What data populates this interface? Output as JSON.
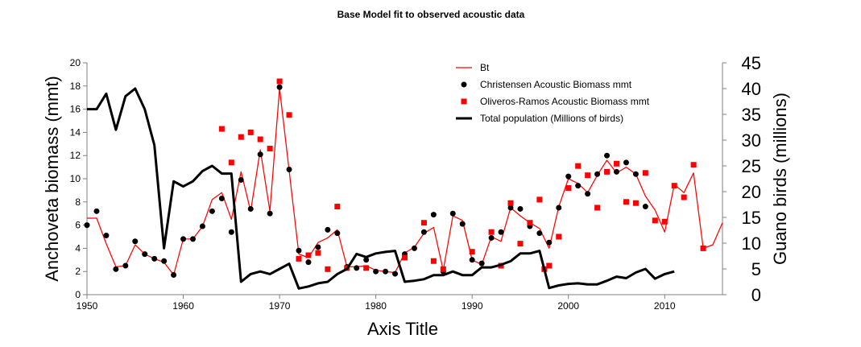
{
  "chart_data": {
    "type": "line",
    "title": "Base Model fit to observed acoustic data",
    "xlabel": "Axis Title",
    "ylabel_left": "Anchoveta  biomass (mmt)",
    "ylabel_right": "Guano birds (millions)",
    "xlim": [
      1950,
      2016
    ],
    "ylim_left": [
      0,
      20
    ],
    "ylim_right": [
      0,
      45
    ],
    "x_ticks": [
      "1950",
      "1960",
      "1970",
      "1980",
      "1990",
      "2000",
      "2010"
    ],
    "y_left_ticks": [
      "0",
      "2",
      "4",
      "6",
      "8",
      "10",
      "12",
      "14",
      "16",
      "18",
      "20"
    ],
    "y_right_ticks": [
      "0",
      "5",
      "10",
      "15",
      "20",
      "25",
      "30",
      "35",
      "40",
      "45"
    ],
    "legend_position": "top-right",
    "grid": false,
    "series": [
      {
        "name": "Bt",
        "kind": "line",
        "axis": "left",
        "color": "#ff0000",
        "points": [
          [
            1950,
            6.6
          ],
          [
            1951,
            6.6
          ],
          [
            1952,
            4.4
          ],
          [
            1953,
            2.4
          ],
          [
            1954,
            2.5
          ],
          [
            1955,
            4.3
          ],
          [
            1956,
            3.5
          ],
          [
            1957,
            3.1
          ],
          [
            1958,
            2.8
          ],
          [
            1959,
            1.7
          ],
          [
            1960,
            4.8
          ],
          [
            1961,
            4.8
          ],
          [
            1962,
            5.9
          ],
          [
            1963,
            8.2
          ],
          [
            1964,
            8.8
          ],
          [
            1965,
            6.5
          ],
          [
            1966,
            10.6
          ],
          [
            1967,
            7.2
          ],
          [
            1968,
            12.5
          ],
          [
            1969,
            7.2
          ],
          [
            1970,
            17.8
          ],
          [
            1971,
            10.7
          ],
          [
            1972,
            3.5
          ],
          [
            1973,
            3.2
          ],
          [
            1974,
            4.5
          ],
          [
            1975,
            4.9
          ],
          [
            1976,
            5.6
          ],
          [
            1977,
            2.4
          ],
          [
            1978,
            2.4
          ],
          [
            1979,
            2.5
          ],
          [
            1980,
            2.1
          ],
          [
            1981,
            2.0
          ],
          [
            1982,
            1.9
          ],
          [
            1983,
            3.6
          ],
          [
            1984,
            4.1
          ],
          [
            1985,
            5.3
          ],
          [
            1986,
            5.8
          ],
          [
            1987,
            2.1
          ],
          [
            1988,
            6.8
          ],
          [
            1989,
            6.4
          ],
          [
            1990,
            3.0
          ],
          [
            1991,
            2.6
          ],
          [
            1992,
            5.0
          ],
          [
            1993,
            4.6
          ],
          [
            1994,
            7.5
          ],
          [
            1995,
            6.8
          ],
          [
            1996,
            6.2
          ],
          [
            1997,
            5.7
          ],
          [
            1998,
            4.0
          ],
          [
            1999,
            7.6
          ],
          [
            2000,
            10.0
          ],
          [
            2001,
            9.6
          ],
          [
            2002,
            8.8
          ],
          [
            2003,
            10.3
          ],
          [
            2004,
            11.6
          ],
          [
            2005,
            10.5
          ],
          [
            2006,
            11.0
          ],
          [
            2007,
            10.4
          ],
          [
            2008,
            8.5
          ],
          [
            2009,
            7.3
          ],
          [
            2010,
            5.4
          ],
          [
            2011,
            9.5
          ],
          [
            2012,
            8.8
          ],
          [
            2013,
            10.5
          ],
          [
            2014,
            4.0
          ],
          [
            2015,
            4.3
          ],
          [
            2016,
            6.2
          ]
        ]
      },
      {
        "name": "Christensen Acoustic Biomass mmt",
        "kind": "marker-circle",
        "axis": "left",
        "color": "#000000",
        "points": [
          [
            1950,
            6.0
          ],
          [
            1951,
            7.2
          ],
          [
            1952,
            5.1
          ],
          [
            1953,
            2.2
          ],
          [
            1954,
            2.5
          ],
          [
            1955,
            4.6
          ],
          [
            1956,
            3.5
          ],
          [
            1957,
            3.1
          ],
          [
            1958,
            2.9
          ],
          [
            1959,
            1.7
          ],
          [
            1960,
            4.8
          ],
          [
            1961,
            4.8
          ],
          [
            1962,
            5.9
          ],
          [
            1963,
            7.2
          ],
          [
            1964,
            8.3
          ],
          [
            1965,
            5.4
          ],
          [
            1966,
            9.9
          ],
          [
            1967,
            7.4
          ],
          [
            1968,
            12.1
          ],
          [
            1969,
            7.0
          ],
          [
            1970,
            17.9
          ],
          [
            1971,
            10.8
          ],
          [
            1972,
            3.8
          ],
          [
            1973,
            2.8
          ],
          [
            1974,
            4.1
          ],
          [
            1975,
            5.6
          ],
          [
            1976,
            5.3
          ],
          [
            1977,
            2.4
          ],
          [
            1978,
            2.3
          ],
          [
            1979,
            3.0
          ],
          [
            1980,
            2.0
          ],
          [
            1981,
            2.0
          ],
          [
            1982,
            1.8
          ],
          [
            1983,
            3.5
          ],
          [
            1984,
            4.0
          ],
          [
            1985,
            5.4
          ],
          [
            1986,
            6.9
          ],
          [
            1987,
            2.0
          ],
          [
            1988,
            7.0
          ],
          [
            1989,
            6.1
          ],
          [
            1990,
            3.0
          ],
          [
            1991,
            2.7
          ],
          [
            1992,
            4.9
          ],
          [
            1993,
            5.4
          ],
          [
            1994,
            7.5
          ],
          [
            1995,
            7.4
          ],
          [
            1996,
            5.9
          ],
          [
            1997,
            5.3
          ],
          [
            1998,
            4.5
          ],
          [
            1999,
            7.5
          ],
          [
            2000,
            10.2
          ],
          [
            2001,
            9.4
          ],
          [
            2002,
            8.7
          ],
          [
            2003,
            10.4
          ],
          [
            2004,
            12.0
          ],
          [
            2005,
            10.6
          ],
          [
            2006,
            11.4
          ],
          [
            2007,
            10.4
          ],
          [
            2008,
            7.6
          ]
        ]
      },
      {
        "name": "Oliveros-Ramos Acoustic Biomass mmt",
        "kind": "marker-square",
        "axis": "left",
        "color": "#ff0000",
        "points": [
          [
            1964,
            14.3
          ],
          [
            1965,
            11.4
          ],
          [
            1966,
            13.6
          ],
          [
            1967,
            14.0
          ],
          [
            1968,
            13.4
          ],
          [
            1969,
            12.6
          ],
          [
            1970,
            18.4
          ],
          [
            1971,
            15.5
          ],
          [
            1972,
            3.1
          ],
          [
            1973,
            3.4
          ],
          [
            1974,
            3.6
          ],
          [
            1975,
            2.2
          ],
          [
            1976,
            7.6
          ],
          [
            1977,
            2.3
          ],
          [
            1979,
            2.3
          ],
          [
            1983,
            3.2
          ],
          [
            1985,
            6.2
          ],
          [
            1986,
            2.9
          ],
          [
            1987,
            2.2
          ],
          [
            1990,
            3.7
          ],
          [
            1992,
            5.4
          ],
          [
            1993,
            2.5
          ],
          [
            1994,
            7.9
          ],
          [
            1995,
            4.4
          ],
          [
            1996,
            6.2
          ],
          [
            1997,
            8.2
          ],
          [
            1997.5,
            2.2
          ],
          [
            1998,
            2.5
          ],
          [
            1999,
            5.0
          ],
          [
            2000,
            9.2
          ],
          [
            2001,
            11.1
          ],
          [
            2002,
            10.3
          ],
          [
            2003,
            7.5
          ],
          [
            2004,
            10.6
          ],
          [
            2005,
            11.3
          ],
          [
            2006,
            8.0
          ],
          [
            2007,
            7.9
          ],
          [
            2008,
            10.5
          ],
          [
            2009,
            6.4
          ],
          [
            2010,
            6.3
          ],
          [
            2011,
            9.4
          ],
          [
            2012,
            8.4
          ],
          [
            2013,
            11.2
          ],
          [
            2014,
            4.0
          ]
        ]
      },
      {
        "name": "Total population (Millions of birds)",
        "kind": "line-thick",
        "axis": "right",
        "color": "#000000",
        "points": [
          [
            1950,
            36
          ],
          [
            1951,
            36
          ],
          [
            1952,
            39
          ],
          [
            1953,
            32
          ],
          [
            1954,
            38.5
          ],
          [
            1955,
            40
          ],
          [
            1956,
            36
          ],
          [
            1957,
            29
          ],
          [
            1958,
            9
          ],
          [
            1959,
            22
          ],
          [
            1960,
            21
          ],
          [
            1961,
            22
          ],
          [
            1962,
            24
          ],
          [
            1963,
            25
          ],
          [
            1964,
            23.5
          ],
          [
            1965,
            23.5
          ],
          [
            1966,
            2.5
          ],
          [
            1967,
            4
          ],
          [
            1968,
            4.5
          ],
          [
            1969,
            4
          ],
          [
            1970,
            5
          ],
          [
            1971,
            6
          ],
          [
            1972,
            1.2
          ],
          [
            1973,
            1.6
          ],
          [
            1974,
            2.2
          ],
          [
            1975,
            2.5
          ],
          [
            1976,
            4
          ],
          [
            1977,
            5
          ],
          [
            1978,
            7.9
          ],
          [
            1979,
            7.3
          ],
          [
            1980,
            8
          ],
          [
            1981,
            8.3
          ],
          [
            1982,
            8.5
          ],
          [
            1983,
            2.5
          ],
          [
            1984,
            2.7
          ],
          [
            1985,
            3
          ],
          [
            1986,
            3.8
          ],
          [
            1987,
            3.8
          ],
          [
            1988,
            4.5
          ],
          [
            1989,
            3.8
          ],
          [
            1990,
            3.8
          ],
          [
            1991,
            5.3
          ],
          [
            1992,
            5.3
          ],
          [
            1993,
            5.8
          ],
          [
            1994,
            6.5
          ],
          [
            1995,
            8
          ],
          [
            1996,
            8
          ],
          [
            1997,
            8.5
          ],
          [
            1998,
            1.3
          ],
          [
            1999,
            1.8
          ],
          [
            2000,
            2.1
          ],
          [
            2001,
            2.2
          ],
          [
            2002,
            2
          ],
          [
            2003,
            2
          ],
          [
            2004,
            2.7
          ],
          [
            2005,
            3.5
          ],
          [
            2006,
            3.2
          ],
          [
            2007,
            4.3
          ],
          [
            2008,
            5
          ],
          [
            2009,
            3.1
          ],
          [
            2010,
            4
          ],
          [
            2011,
            4.5
          ]
        ]
      }
    ]
  }
}
